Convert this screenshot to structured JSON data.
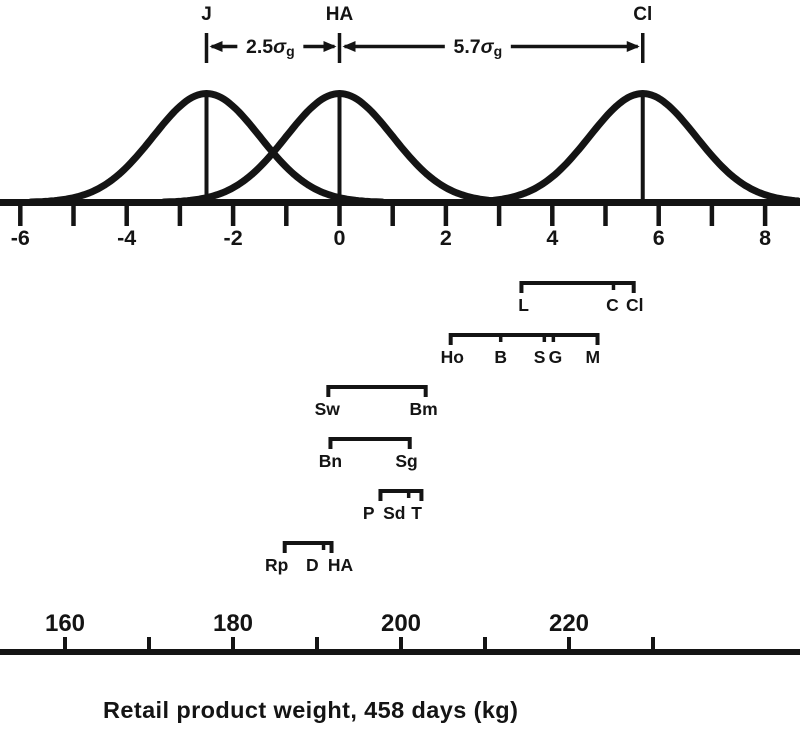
{
  "colors": {
    "paper": "#ffffff",
    "ink": "#141414"
  },
  "chart_data": {
    "type": "line",
    "title": "",
    "xlabel": "Retail product weight, 458 days (kg)",
    "caption": "Retail product weight, 458 days (kg)",
    "description": "Three overlapping normal distributions of breed means on a genetic standard deviation (sigma-g) scale, with breed-group range brackets plotted against retail product weight at 458 days (kg).",
    "grid": false,
    "legend": "none",
    "curves": [
      {
        "label": "J",
        "mean_sigma": -2.5,
        "sd_sigma": 1
      },
      {
        "label": "HA",
        "mean_sigma": 0.0,
        "sd_sigma": 1
      },
      {
        "label": "Cl",
        "mean_sigma": 5.7,
        "sd_sigma": 1
      }
    ],
    "intervals": [
      {
        "value": "2.5",
        "sigma": "σ",
        "subscript": "g",
        "from": "J",
        "to": "HA",
        "from_sigma": -2.5,
        "to_sigma": 0.0,
        "label_sigma": -1.3
      },
      {
        "value": "5.7",
        "sigma": "σ",
        "subscript": "g",
        "from": "HA",
        "to": "Cl",
        "from_sigma": 0.0,
        "to_sigma": 5.7,
        "label_sigma": 2.6
      }
    ],
    "sigma_axis": {
      "range": [
        -6,
        8.6
      ],
      "tick_min": -6,
      "tick_max": 8,
      "tick_step": 1,
      "labeled_ticks": [
        -6,
        -4,
        -2,
        0,
        2,
        4,
        6,
        8
      ],
      "labels": [
        "-6",
        "-4",
        "-2",
        "0",
        "2",
        "4",
        "6",
        "8"
      ]
    },
    "breed_rows": [
      {
        "bar": {
          "from_sigma": 3.42,
          "to_sigma": 5.53,
          "tick_sigmas": [
            5.15
          ]
        },
        "labels": [
          {
            "text": "L",
            "sigma": 3.46,
            "approx_kg": 214.5
          },
          {
            "text": "C",
            "sigma": 5.13,
            "approx_kg": 225.0
          },
          {
            "text": "Cl",
            "sigma": 5.55,
            "approx_kg": 228.0
          }
        ]
      },
      {
        "bar": {
          "from_sigma": 2.09,
          "to_sigma": 4.85,
          "tick_sigmas": [
            3.03,
            3.85,
            4.02
          ]
        },
        "labels": [
          {
            "text": "Ho",
            "sigma": 2.12,
            "approx_kg": 206.0
          },
          {
            "text": "B",
            "sigma": 3.03,
            "approx_kg": 212.0
          },
          {
            "text": "S",
            "sigma": 3.76,
            "approx_kg": 216.5
          },
          {
            "text": "G",
            "sigma": 4.06,
            "approx_kg": 218.5
          },
          {
            "text": "M",
            "sigma": 4.76,
            "approx_kg": 223.0
          }
        ]
      },
      {
        "bar": {
          "from_sigma": -0.21,
          "to_sigma": 1.62,
          "tick_sigmas": []
        },
        "labels": [
          {
            "text": "Sw",
            "sigma": -0.23,
            "approx_kg": 191.0
          },
          {
            "text": "Bm",
            "sigma": 1.58,
            "approx_kg": 203.0
          }
        ]
      },
      {
        "bar": {
          "from_sigma": -0.17,
          "to_sigma": 1.32,
          "tick_sigmas": []
        },
        "labels": [
          {
            "text": "Bn",
            "sigma": -0.17,
            "approx_kg": 191.5
          },
          {
            "text": "Sg",
            "sigma": 1.26,
            "approx_kg": 200.5
          }
        ]
      },
      {
        "bar": {
          "from_sigma": 0.77,
          "to_sigma": 1.54,
          "tick_sigmas": [
            1.3
          ]
        },
        "labels": [
          {
            "text": "P",
            "sigma": 0.55,
            "approx_kg": 196.0
          },
          {
            "text": "Sd",
            "sigma": 1.03,
            "approx_kg": 199.0
          },
          {
            "text": "T",
            "sigma": 1.45,
            "approx_kg": 202.0
          }
        ]
      },
      {
        "bar": {
          "from_sigma": -1.03,
          "to_sigma": -0.15,
          "tick_sigmas": [
            -0.3
          ]
        },
        "labels": [
          {
            "text": "Rp",
            "sigma": -1.18,
            "approx_kg": 185.0
          },
          {
            "text": "D",
            "sigma": -0.51,
            "approx_kg": 189.5
          },
          {
            "text": "HA",
            "sigma": 0.02,
            "approx_kg": 193.0
          }
        ]
      }
    ],
    "weight_axis": {
      "unit": "kg",
      "tick_min": 160,
      "tick_max": 230,
      "tick_step": 10,
      "labeled_ticks": [
        160,
        180,
        200,
        220
      ],
      "labels": [
        "160",
        "180",
        "200",
        "220"
      ]
    }
  }
}
